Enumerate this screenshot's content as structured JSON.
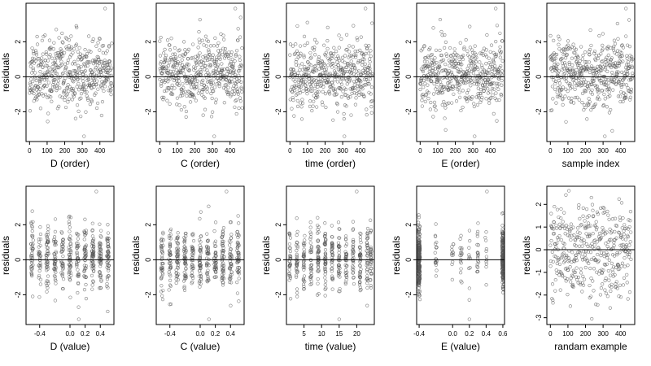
{
  "chart_data": [
    {
      "type": "scatter",
      "xlabel": "D (order)",
      "ylabel": "residuals",
      "xlim": [
        -20,
        480
      ],
      "ylim": [
        -3.7,
        4.2
      ],
      "xticks": [
        0,
        100,
        200,
        300,
        400
      ],
      "xticklabels": [
        "0",
        "100",
        "200",
        "300",
        "400"
      ],
      "yticks": [
        -2,
        0,
        2
      ],
      "yticklabels": [
        "-2",
        "0",
        "2"
      ],
      "hline": 0,
      "n": 470,
      "seed": 11,
      "gen": "order",
      "grid": false
    },
    {
      "type": "scatter",
      "xlabel": "C (order)",
      "ylabel": "residuals",
      "xlim": [
        -20,
        480
      ],
      "ylim": [
        -3.7,
        4.2
      ],
      "xticks": [
        0,
        100,
        200,
        300,
        400
      ],
      "xticklabels": [
        "0",
        "100",
        "200",
        "300",
        "400"
      ],
      "yticks": [
        -2,
        0,
        2
      ],
      "yticklabels": [
        "-2",
        "0",
        "2"
      ],
      "hline": 0,
      "n": 470,
      "seed": 23,
      "gen": "order",
      "grid": false
    },
    {
      "type": "scatter",
      "xlabel": "time (order)",
      "ylabel": "residuals",
      "xlim": [
        -20,
        480
      ],
      "ylim": [
        -3.7,
        4.2
      ],
      "xticks": [
        0,
        100,
        200,
        300,
        400
      ],
      "xticklabels": [
        "0",
        "100",
        "200",
        "300",
        "400"
      ],
      "yticks": [
        -2,
        0,
        2
      ],
      "yticklabels": [
        "-2",
        "0",
        "2"
      ],
      "hline": 0,
      "n": 470,
      "seed": 37,
      "gen": "order",
      "grid": false
    },
    {
      "type": "scatter",
      "xlabel": "E (order)",
      "ylabel": "residuals",
      "xlim": [
        -20,
        480
      ],
      "ylim": [
        -3.7,
        4.2
      ],
      "xticks": [
        0,
        100,
        200,
        300,
        400
      ],
      "xticklabels": [
        "0",
        "100",
        "200",
        "300",
        "400"
      ],
      "yticks": [
        -2,
        0,
        2
      ],
      "yticklabels": [
        "-2",
        "0",
        "2"
      ],
      "hline": 0,
      "n": 470,
      "seed": 41,
      "gen": "order",
      "grid": false
    },
    {
      "type": "scatter",
      "xlabel": "sample index",
      "ylabel": "residuals",
      "xlim": [
        -20,
        480
      ],
      "ylim": [
        -3.7,
        4.2
      ],
      "xticks": [
        0,
        100,
        200,
        300,
        400
      ],
      "xticklabels": [
        "0",
        "100",
        "200",
        "300",
        "400"
      ],
      "yticks": [
        -2,
        0,
        2
      ],
      "yticklabels": [
        "-2",
        "0",
        "2"
      ],
      "hline": 0,
      "n": 470,
      "seed": 53,
      "gen": "order",
      "grid": false
    },
    {
      "type": "scatter",
      "xlabel": "D (value)",
      "ylabel": "residuals",
      "xlim": [
        -0.58,
        0.58
      ],
      "ylim": [
        -3.7,
        4.2
      ],
      "xticks": [
        -0.4,
        0,
        0.2,
        0.4
      ],
      "xticklabels": [
        "-0.4",
        "0.0",
        "0.2",
        "0.4"
      ],
      "yticks": [
        -2,
        0,
        2
      ],
      "yticklabels": [
        "-2",
        "0",
        "2"
      ],
      "hline": 0,
      "n": 470,
      "seed": 61,
      "gen": "discrete",
      "levels": [
        -0.5,
        -0.4,
        -0.3,
        -0.2,
        -0.1,
        0,
        0.1,
        0.2,
        0.3,
        0.4,
        0.5
      ],
      "grid": false
    },
    {
      "type": "scatter",
      "xlabel": "C (value)",
      "ylabel": "residuals",
      "xlim": [
        -0.58,
        0.58
      ],
      "ylim": [
        -3.7,
        4.2
      ],
      "xticks": [
        -0.4,
        0,
        0.2,
        0.4
      ],
      "xticklabels": [
        "-0.4",
        "0.0",
        "0.2",
        "0.4"
      ],
      "yticks": [
        -2,
        0,
        2
      ],
      "yticklabels": [
        "-2",
        "0",
        "2"
      ],
      "hline": 0,
      "n": 470,
      "seed": 71,
      "gen": "discrete",
      "levels": [
        -0.5,
        -0.4,
        -0.3,
        -0.2,
        -0.1,
        0,
        0.1,
        0.2,
        0.3,
        0.4,
        0.5
      ],
      "grid": false
    },
    {
      "type": "scatter",
      "xlabel": "time (value)",
      "ylabel": "residuals",
      "xlim": [
        0,
        25
      ],
      "ylim": [
        -3.7,
        4.2
      ],
      "xticks": [
        5,
        10,
        15,
        20
      ],
      "xticklabels": [
        "5",
        "10",
        "15",
        "20"
      ],
      "yticks": [
        -2,
        0,
        2
      ],
      "yticklabels": [
        "-2",
        "0",
        "2"
      ],
      "hline": 0,
      "n": 470,
      "seed": 83,
      "gen": "time",
      "levels": [
        1,
        3,
        5,
        7,
        9,
        11,
        13,
        15,
        17,
        19,
        21,
        23,
        24
      ],
      "grid": false
    },
    {
      "type": "scatter",
      "xlabel": "E (value)",
      "ylabel": "residuals",
      "xlim": [
        -0.43,
        0.62
      ],
      "ylim": [
        -3.7,
        4.2
      ],
      "xticks": [
        -0.4,
        0,
        0.2,
        0.4,
        0.6
      ],
      "xticklabels": [
        "-0.4",
        "0.0",
        "0.2",
        "0.4",
        "0.6"
      ],
      "yticks": [
        -2,
        0,
        2
      ],
      "yticklabels": [
        "-2",
        "0",
        "2"
      ],
      "hline": 0,
      "n": 470,
      "seed": 97,
      "gen": "evalue",
      "grid": false
    },
    {
      "type": "scatter",
      "xlabel": "randam example",
      "ylabel": "residuals",
      "xlim": [
        -20,
        480
      ],
      "ylim": [
        -3.3,
        2.8
      ],
      "xticks": [
        0,
        100,
        200,
        300,
        400
      ],
      "xticklabels": [
        "0",
        "100",
        "200",
        "300",
        "400"
      ],
      "yticks": [
        -3,
        -2,
        -1,
        0,
        1,
        2
      ],
      "yticklabels": [
        "-3",
        "-2",
        "-1",
        "0",
        "1",
        "2"
      ],
      "hline": 0,
      "n": 400,
      "seed": 101,
      "gen": "random",
      "grid": false
    }
  ]
}
